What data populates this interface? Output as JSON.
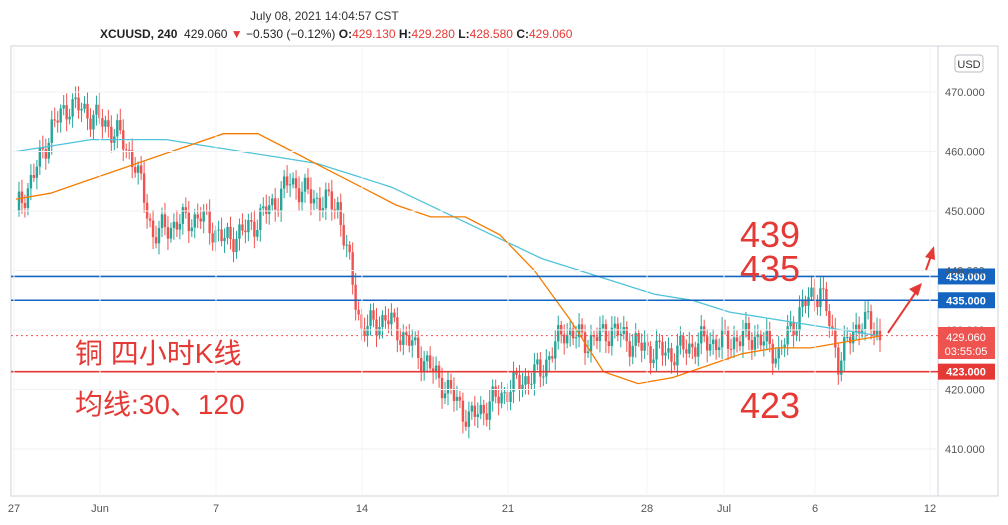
{
  "header": {
    "timestamp": "July 08, 2021 14:04:57 CST",
    "symbol": "XCUUSD, 240",
    "last": "429.060",
    "change_arrow": "▼",
    "change": "−0.530 (−0.12%)",
    "open_label": "O:",
    "open": "429.130",
    "high_label": "H:",
    "high": "429.280",
    "low_label": "L:",
    "low": "428.580",
    "close_label": "C:",
    "close": "429.060"
  },
  "currency_badge": "USD",
  "annotations": {
    "title": "铜 四小时K线",
    "ma_note": "均线:30、120",
    "level_439": "439",
    "level_435": "435",
    "level_423": "423"
  },
  "price_tags": {
    "last_price": "429.060",
    "countdown": "03:55:05"
  },
  "colors": {
    "up": "#26a69a",
    "down": "#ef5350",
    "ma30": "#f57c00",
    "ma120": "#4fc3d9",
    "resistance": "#1565c0",
    "support": "#e53935",
    "annotation": "#e53935"
  },
  "chart_data": {
    "type": "candlestick",
    "y_axis": {
      "min": 405,
      "max": 476,
      "ticks": [
        410,
        420,
        430,
        440,
        450,
        460,
        470
      ],
      "tick_labels": [
        "410.000",
        "420.000",
        "430.000",
        "440.000",
        "450.000",
        "460.000",
        "470.000"
      ]
    },
    "x_axis": {
      "tick_labels": [
        "27",
        "Jun",
        "7",
        "14",
        "21",
        "28",
        "Jul",
        "6",
        "12"
      ]
    },
    "horizontal_levels": [
      {
        "price": 439,
        "label": "439.000",
        "color": "#1565c0"
      },
      {
        "price": 435,
        "label": "435.000",
        "color": "#1565c0"
      },
      {
        "price": 423,
        "label": "423.000",
        "color": "#e53935"
      }
    ],
    "ma30_points": [
      452,
      453,
      455,
      457,
      459,
      461,
      463,
      463,
      460,
      457,
      454,
      451,
      449,
      449,
      446,
      440,
      432,
      423,
      421,
      422,
      424,
      426,
      427,
      427,
      428,
      429
    ],
    "ma120_points": [
      460,
      461,
      462,
      462,
      462,
      461,
      460,
      459,
      458,
      456,
      454,
      451,
      448,
      445,
      442,
      440,
      438,
      436,
      435,
      433,
      432,
      431,
      430,
      429
    ]
  }
}
